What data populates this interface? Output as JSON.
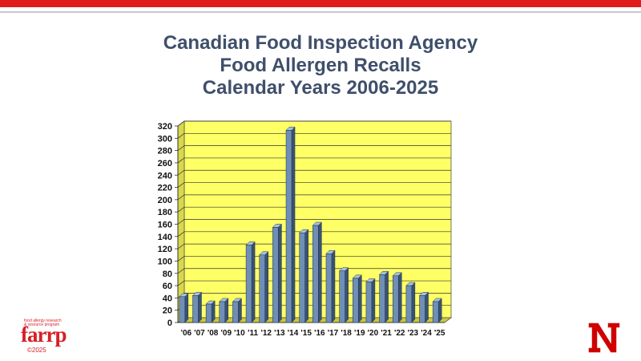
{
  "title": {
    "line1": "Canadian Food Inspection Agency",
    "line2": "Food Allergen Recalls",
    "line3": "Calendar Years 2006-2025"
  },
  "logo": {
    "tagline1": "food allergy research",
    "tagline2": "& resource program",
    "wordmark": "farrp",
    "copyright": "©2025"
  },
  "brand_logo": "nebraska-n-icon",
  "colors": {
    "plot_background": "#ffff66",
    "bar_fill": "#6f8fb5",
    "bar_side": "#3a5273",
    "bar_top": "#a9c2de",
    "accent_red": "#e11c1c",
    "title_color": "#3f4f6b"
  },
  "chart_data": {
    "type": "bar",
    "categories": [
      "'06",
      "'07",
      "'08",
      "'09",
      "'10",
      "'11",
      "'12",
      "'13",
      "'14",
      "'15",
      "'16",
      "'17",
      "'18",
      "'19",
      "'20",
      "'21",
      "'22",
      "'23",
      "'24",
      "'25"
    ],
    "values": [
      42,
      44,
      30,
      34,
      34,
      126,
      110,
      155,
      313,
      146,
      158,
      112,
      84,
      72,
      66,
      78,
      76,
      60,
      44,
      34
    ],
    "ylim": [
      0,
      320
    ],
    "yticks": [
      "0",
      "20",
      "40",
      "60",
      "80",
      "100",
      "120",
      "140",
      "160",
      "180",
      "200",
      "220",
      "240",
      "260",
      "280",
      "300",
      "320"
    ],
    "grid": true,
    "legend": "none",
    "style": "3d"
  }
}
